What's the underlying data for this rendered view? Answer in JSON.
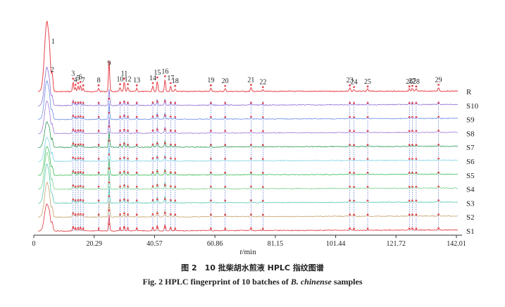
{
  "caption": {
    "cn": "图 2　10 批柴胡水煎液 HPLC 指纹图谱",
    "en_prefix": "Fig. 2   HPLC fingerprint of 10 batches of ",
    "en_species": "B. chinense",
    "en_suffix": " samples"
  },
  "chart_data": {
    "type": "line",
    "xlabel_var": "t",
    "xlabel_unit": "/min",
    "xlim": [
      0,
      142.01
    ],
    "x_ticks": [
      0,
      20.29,
      40.57,
      60.86,
      81.15,
      101.44,
      121.72,
      142.01
    ],
    "x_tick_labels": [
      "0",
      "20.29",
      "40.57",
      "60.86",
      "81.15",
      "101.44",
      "121.72",
      "142.01"
    ],
    "series": [
      {
        "name": "R",
        "color": "#e8434b"
      },
      {
        "name": "S10",
        "color": "#8c6bd6"
      },
      {
        "name": "S9",
        "color": "#6a8ee8"
      },
      {
        "name": "S8",
        "color": "#a07ad8"
      },
      {
        "name": "S7",
        "color": "#2e9a55"
      },
      {
        "name": "S6",
        "color": "#7fd3e6"
      },
      {
        "name": "S5",
        "color": "#3fbf5a"
      },
      {
        "name": "S4",
        "color": "#7ad08c"
      },
      {
        "name": "S3",
        "color": "#58c9b0"
      },
      {
        "name": "S2",
        "color": "#c8a06a"
      },
      {
        "name": "S1",
        "color": "#e03038"
      }
    ],
    "peaks": [
      {
        "label": "1",
        "rt": 5.3,
        "height": 1.0
      },
      {
        "label": "2",
        "rt": 6.2,
        "height": 0.25
      },
      {
        "label": "3",
        "rt": 13.2,
        "height": 0.18
      },
      {
        "label": "4",
        "rt": 14.0,
        "height": 0.07
      },
      {
        "label": "5",
        "rt": 14.9,
        "height": 0.1
      },
      {
        "label": "6",
        "rt": 15.7,
        "height": 0.12
      },
      {
        "label": "7",
        "rt": 16.6,
        "height": 0.06
      },
      {
        "label": "8",
        "rt": 21.8,
        "height": 0.06
      },
      {
        "label": "9",
        "rt": 25.3,
        "height": 0.55
      },
      {
        "label": "10",
        "rt": 29.0,
        "height": 0.08
      },
      {
        "label": "11",
        "rt": 30.4,
        "height": 0.18
      },
      {
        "label": "12",
        "rt": 31.6,
        "height": 0.08
      },
      {
        "label": "13",
        "rt": 34.6,
        "height": 0.06
      },
      {
        "label": "14",
        "rt": 40.0,
        "height": 0.1
      },
      {
        "label": "15",
        "rt": 41.5,
        "height": 0.2
      },
      {
        "label": "16",
        "rt": 44.1,
        "height": 0.22
      },
      {
        "label": "17",
        "rt": 46.0,
        "height": 0.1
      },
      {
        "label": "18",
        "rt": 47.5,
        "height": 0.05
      },
      {
        "label": "19",
        "rt": 59.5,
        "height": 0.06
      },
      {
        "label": "20",
        "rt": 64.3,
        "height": 0.05
      },
      {
        "label": "21",
        "rt": 73.0,
        "height": 0.07
      },
      {
        "label": "22",
        "rt": 77.0,
        "height": 0.03
      },
      {
        "label": "23",
        "rt": 106.2,
        "height": 0.06
      },
      {
        "label": "24",
        "rt": 107.6,
        "height": 0.03
      },
      {
        "label": "25",
        "rt": 112.2,
        "height": 0.04
      },
      {
        "label": "26",
        "rt": 126.2,
        "height": 0.04
      },
      {
        "label": "27",
        "rt": 127.2,
        "height": 0.05
      },
      {
        "label": "28",
        "rt": 128.5,
        "height": 0.04
      },
      {
        "label": "29",
        "rt": 136.0,
        "height": 0.07
      }
    ]
  }
}
